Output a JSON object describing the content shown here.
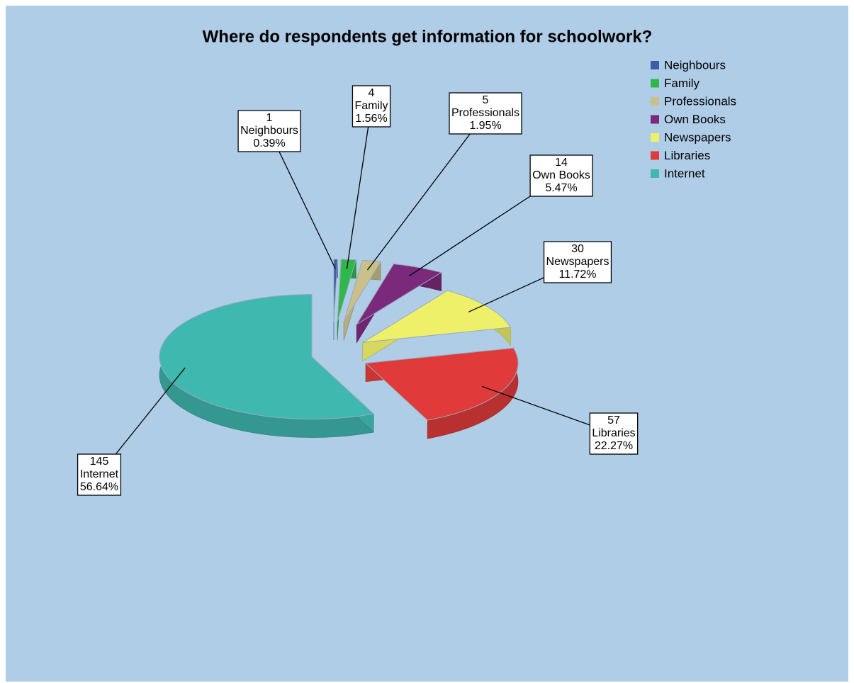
{
  "chart_data": {
    "type": "pie",
    "title": "Where do respondents get information for schoolwork?",
    "categories": [
      "Neighbours",
      "Family",
      "Professionals",
      "Own Books",
      "Newspapers",
      "Libraries",
      "Internet"
    ],
    "values": [
      1,
      4,
      5,
      14,
      30,
      57,
      145
    ],
    "percent_labels": [
      "0.39%",
      "1.56%",
      "1.95%",
      "5.47%",
      "11.72%",
      "22.27%",
      "56.64%"
    ],
    "colors": [
      "#3a5fa8",
      "#2fb84a",
      "#c9c08a",
      "#7b2a7b",
      "#eef06a",
      "#e03a3a",
      "#3fb8b0"
    ],
    "legend": "top-right"
  }
}
